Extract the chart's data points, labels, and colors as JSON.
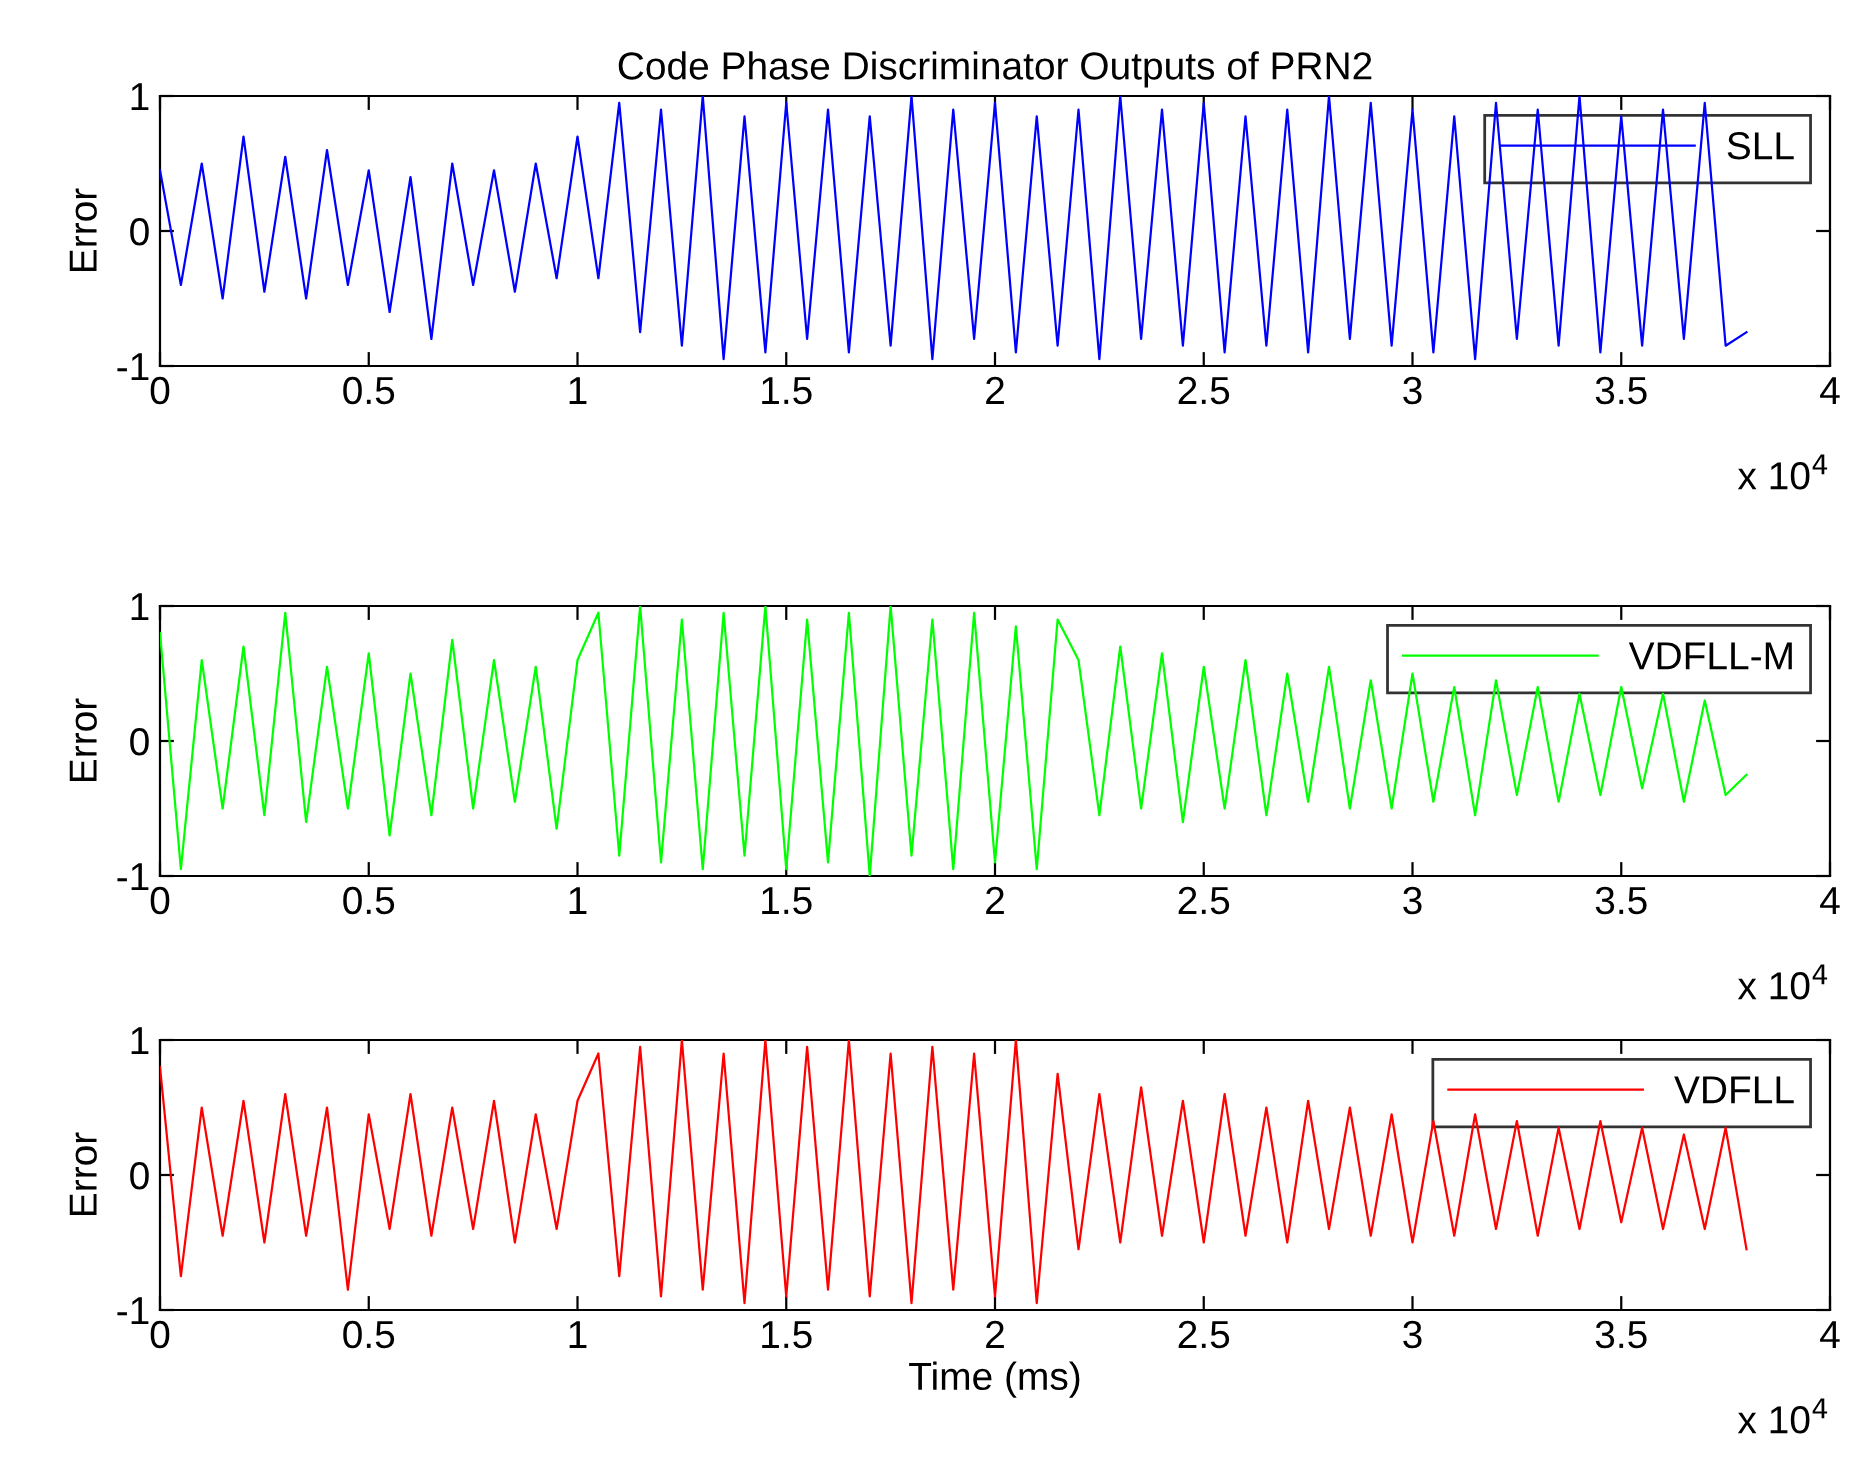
{
  "chart_data": [
    {
      "type": "line",
      "title": "Code Phase Discriminator Outputs of PRN2",
      "ylabel": "Error",
      "annotations": [
        "x 10$^{4}$"
      ],
      "x": [
        0,
        0.05,
        0.1,
        0.15,
        0.2,
        0.25,
        0.3,
        0.35,
        0.4,
        0.45,
        0.5,
        0.55,
        0.6,
        0.65,
        0.7,
        0.75,
        0.8,
        0.85,
        0.9,
        0.95,
        1.0,
        1.05,
        1.1,
        1.15,
        1.2,
        1.25,
        1.3,
        1.35,
        1.4,
        1.45,
        1.5,
        1.55,
        1.6,
        1.65,
        1.7,
        1.75,
        1.8,
        1.85,
        1.9,
        1.95,
        2.0,
        2.05,
        2.1,
        2.15,
        2.2,
        2.25,
        2.3,
        2.35,
        2.4,
        2.45,
        2.5,
        2.55,
        2.6,
        2.65,
        2.7,
        2.75,
        2.8,
        2.85,
        2.9,
        2.95,
        3.0,
        3.05,
        3.1,
        3.15,
        3.2,
        3.25,
        3.3,
        3.35,
        3.4,
        3.45,
        3.5,
        3.55,
        3.6,
        3.65,
        3.7,
        3.75,
        3.8
      ],
      "series": [
        {
          "name": "SLL",
          "color": "#0000ff",
          "values": [
            0.45,
            -0.4,
            0.5,
            -0.5,
            0.7,
            -0.45,
            0.55,
            -0.5,
            0.6,
            -0.4,
            0.45,
            -0.6,
            0.4,
            -0.8,
            0.5,
            -0.4,
            0.45,
            -0.45,
            0.5,
            -0.35,
            0.7,
            -0.35,
            0.95,
            -0.75,
            0.9,
            -0.85,
            1.0,
            -0.95,
            0.85,
            -0.9,
            0.95,
            -0.8,
            0.9,
            -0.9,
            0.85,
            -0.85,
            1.0,
            -0.95,
            0.9,
            -0.8,
            0.95,
            -0.9,
            0.85,
            -0.85,
            0.9,
            -0.95,
            1.0,
            -0.8,
            0.9,
            -0.85,
            0.95,
            -0.9,
            0.85,
            -0.85,
            0.9,
            -0.9,
            1.0,
            -0.8,
            0.95,
            -0.85,
            0.9,
            -0.9,
            0.85,
            -0.95,
            0.95,
            -0.8,
            0.9,
            -0.85,
            1.0,
            -0.9,
            0.85,
            -0.85,
            0.9,
            -0.8,
            0.95,
            -0.85,
            -0.75
          ]
        }
      ],
      "xlim": [
        0,
        4
      ],
      "xticks": [
        0,
        0.5,
        1,
        1.5,
        2,
        2.5,
        3,
        3.5,
        4
      ],
      "ylim": [
        -1,
        1
      ],
      "yticks": [
        -1,
        0,
        1
      ],
      "legend": "top right",
      "line_style": "solid"
    },
    {
      "type": "line",
      "ylabel": "Error",
      "annotations": [
        "x 10$^{4}$"
      ],
      "x": [
        0,
        0.05,
        0.1,
        0.15,
        0.2,
        0.25,
        0.3,
        0.35,
        0.4,
        0.45,
        0.5,
        0.55,
        0.6,
        0.65,
        0.7,
        0.75,
        0.8,
        0.85,
        0.9,
        0.95,
        1.0,
        1.05,
        1.1,
        1.15,
        1.2,
        1.25,
        1.3,
        1.35,
        1.4,
        1.45,
        1.5,
        1.55,
        1.6,
        1.65,
        1.7,
        1.75,
        1.8,
        1.85,
        1.9,
        1.95,
        2.0,
        2.05,
        2.1,
        2.15,
        2.2,
        2.25,
        2.3,
        2.35,
        2.4,
        2.45,
        2.5,
        2.55,
        2.6,
        2.65,
        2.7,
        2.75,
        2.8,
        2.85,
        2.9,
        2.95,
        3.0,
        3.05,
        3.1,
        3.15,
        3.2,
        3.25,
        3.3,
        3.35,
        3.4,
        3.45,
        3.5,
        3.55,
        3.6,
        3.65,
        3.7,
        3.75,
        3.8
      ],
      "series": [
        {
          "name": "VDFLL-M",
          "color": "#00ff00",
          "values": [
            0.8,
            -0.95,
            0.6,
            -0.5,
            0.7,
            -0.55,
            0.95,
            -0.6,
            0.55,
            -0.5,
            0.65,
            -0.7,
            0.5,
            -0.55,
            0.75,
            -0.5,
            0.6,
            -0.45,
            0.55,
            -0.65,
            0.6,
            0.95,
            -0.85,
            1.0,
            -0.9,
            0.9,
            -0.95,
            0.95,
            -0.85,
            1.0,
            -0.95,
            0.9,
            -0.9,
            0.95,
            -1.0,
            1.0,
            -0.85,
            0.9,
            -0.95,
            0.95,
            -0.9,
            0.85,
            -0.95,
            0.9,
            0.6,
            -0.55,
            0.7,
            -0.5,
            0.65,
            -0.6,
            0.55,
            -0.5,
            0.6,
            -0.55,
            0.5,
            -0.45,
            0.55,
            -0.5,
            0.45,
            -0.5,
            0.5,
            -0.45,
            0.4,
            -0.55,
            0.45,
            -0.4,
            0.4,
            -0.45,
            0.35,
            -0.4,
            0.4,
            -0.35,
            0.35,
            -0.45,
            0.3,
            -0.4,
            -0.25
          ]
        }
      ],
      "xlim": [
        0,
        4
      ],
      "xticks": [
        0,
        0.5,
        1,
        1.5,
        2,
        2.5,
        3,
        3.5,
        4
      ],
      "ylim": [
        -1,
        1
      ],
      "yticks": [
        -1,
        0,
        1
      ],
      "legend": "top right",
      "line_style": "solid"
    },
    {
      "type": "line",
      "ylabel": "Error",
      "xlabel": "Time (ms)",
      "annotations": [
        "x 10$^{4}$"
      ],
      "x": [
        0,
        0.05,
        0.1,
        0.15,
        0.2,
        0.25,
        0.3,
        0.35,
        0.4,
        0.45,
        0.5,
        0.55,
        0.6,
        0.65,
        0.7,
        0.75,
        0.8,
        0.85,
        0.9,
        0.95,
        1.0,
        1.05,
        1.1,
        1.15,
        1.2,
        1.25,
        1.3,
        1.35,
        1.4,
        1.45,
        1.5,
        1.55,
        1.6,
        1.65,
        1.7,
        1.75,
        1.8,
        1.85,
        1.9,
        1.95,
        2.0,
        2.05,
        2.1,
        2.15,
        2.2,
        2.25,
        2.3,
        2.35,
        2.4,
        2.45,
        2.5,
        2.55,
        2.6,
        2.65,
        2.7,
        2.75,
        2.8,
        2.85,
        2.9,
        2.95,
        3.0,
        3.05,
        3.1,
        3.15,
        3.2,
        3.25,
        3.3,
        3.35,
        3.4,
        3.45,
        3.5,
        3.55,
        3.6,
        3.65,
        3.7,
        3.75,
        3.8
      ],
      "series": [
        {
          "name": "VDFLL",
          "color": "#ff0000",
          "values": [
            0.8,
            -0.75,
            0.5,
            -0.45,
            0.55,
            -0.5,
            0.6,
            -0.45,
            0.5,
            -0.85,
            0.45,
            -0.4,
            0.6,
            -0.45,
            0.5,
            -0.4,
            0.55,
            -0.5,
            0.45,
            -0.4,
            0.55,
            0.9,
            -0.75,
            0.95,
            -0.9,
            1.0,
            -0.85,
            0.9,
            -0.95,
            1.0,
            -0.9,
            0.95,
            -0.85,
            1.0,
            -0.9,
            0.9,
            -0.95,
            0.95,
            -0.85,
            0.9,
            -0.9,
            1.0,
            -0.95,
            0.75,
            -0.55,
            0.6,
            -0.5,
            0.65,
            -0.45,
            0.55,
            -0.5,
            0.6,
            -0.45,
            0.5,
            -0.5,
            0.55,
            -0.4,
            0.5,
            -0.45,
            0.45,
            -0.5,
            0.4,
            -0.45,
            0.45,
            -0.4,
            0.4,
            -0.45,
            0.35,
            -0.4,
            0.4,
            -0.35,
            0.35,
            -0.4,
            0.3,
            -0.4,
            0.35,
            -0.55
          ]
        }
      ],
      "xlim": [
        0,
        4
      ],
      "xticks": [
        0,
        0.5,
        1,
        1.5,
        2,
        2.5,
        3,
        3.5,
        4
      ],
      "ylim": [
        -1,
        1
      ],
      "yticks": [
        -1,
        0,
        1
      ],
      "legend": "top right",
      "line_style": "solid"
    }
  ]
}
